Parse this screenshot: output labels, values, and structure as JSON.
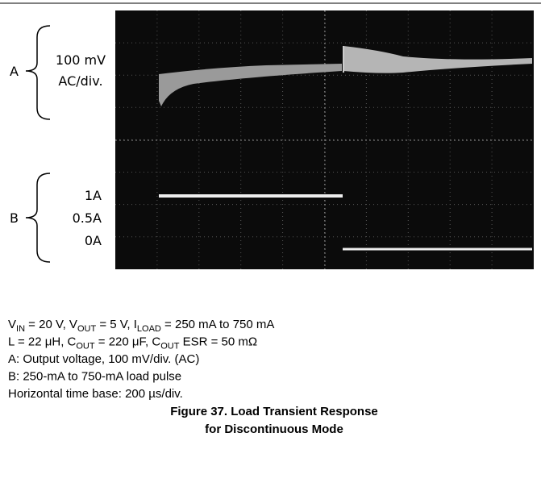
{
  "figure": {
    "labels": {
      "a": "A",
      "a_scale": [
        "100 mV",
        "AC/div."
      ],
      "b": "B",
      "b_scale": [
        "1A",
        "0.5A",
        "0A"
      ]
    },
    "notes": [
      [
        "V",
        "IN",
        " = 20 V, V",
        "OUT",
        " = 5 V, I",
        "LOAD",
        " = 250 mA to 750 mA"
      ],
      [
        "L = 22 μH, C",
        "OUT",
        " = 220 μF, C",
        "OUT",
        " ESR = 50 mΩ"
      ],
      [
        "A: Output voltage, 100 mV/div. (AC)"
      ],
      [
        "B: 250-mA to 750-mA load pulse"
      ],
      [
        "Horizontal time base: 200 µs/div."
      ]
    ],
    "caption": [
      "Figure 37. Load Transient Response",
      "for Discontinuous Mode"
    ]
  }
}
